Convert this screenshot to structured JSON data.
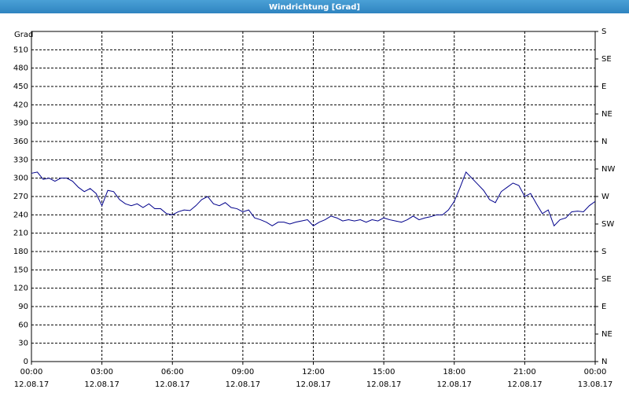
{
  "chart_data": {
    "type": "line",
    "title": "Windrichtung [Grad]",
    "y_label": "Grad",
    "x": [
      0,
      0.25,
      0.5,
      0.75,
      1,
      1.25,
      1.5,
      1.75,
      2,
      2.25,
      2.5,
      2.75,
      3,
      3.25,
      3.5,
      3.75,
      4,
      4.25,
      4.5,
      4.75,
      5,
      5.25,
      5.5,
      5.75,
      6,
      6.25,
      6.5,
      6.75,
      7,
      7.25,
      7.5,
      7.75,
      8,
      8.25,
      8.5,
      8.75,
      9,
      9.25,
      9.5,
      9.75,
      10,
      10.25,
      10.5,
      10.75,
      11,
      11.25,
      11.5,
      11.75,
      12,
      12.25,
      12.5,
      12.75,
      13,
      13.25,
      13.5,
      13.75,
      14,
      14.25,
      14.5,
      14.75,
      15,
      15.25,
      15.5,
      15.75,
      16,
      16.25,
      16.5,
      16.75,
      17,
      17.25,
      17.5,
      17.75,
      18,
      18.25,
      18.5,
      18.75,
      19,
      19.25,
      19.5,
      19.75,
      20,
      20.25,
      20.5,
      20.75,
      21,
      21.25,
      21.5,
      21.75,
      22,
      22.25,
      22.5,
      22.75,
      23,
      23.25,
      23.5,
      23.75,
      24
    ],
    "series": [
      {
        "color": "#00008b",
        "values": [
          308,
          310,
          298,
          300,
          295,
          300,
          300,
          295,
          285,
          278,
          283,
          275,
          255,
          280,
          278,
          265,
          258,
          255,
          258,
          252,
          258,
          250,
          250,
          242,
          240,
          245,
          248,
          247,
          255,
          265,
          270,
          258,
          255,
          260,
          252,
          250,
          245,
          248,
          235,
          232,
          228,
          222,
          228,
          228,
          225,
          228,
          230,
          232,
          222,
          228,
          232,
          238,
          235,
          230,
          232,
          230,
          232,
          228,
          232,
          230,
          235,
          232,
          230,
          228,
          232,
          238,
          232,
          235,
          237,
          240,
          240,
          248,
          262,
          285,
          310,
          300,
          290,
          280,
          265,
          260,
          278,
          285,
          292,
          288,
          270,
          275,
          258,
          242,
          248,
          222,
          232,
          235,
          245,
          246,
          245,
          255,
          262
        ]
      }
    ],
    "xlim": [
      0,
      24
    ],
    "xticks": [
      {
        "value": 0,
        "label": "00:00",
        "date": "12.08.17"
      },
      {
        "value": 3,
        "label": "03:00",
        "date": "12.08.17"
      },
      {
        "value": 6,
        "label": "06:00",
        "date": "12.08.17"
      },
      {
        "value": 9,
        "label": "09:00",
        "date": "12.08.17"
      },
      {
        "value": 12,
        "label": "12:00",
        "date": "12.08.17"
      },
      {
        "value": 15,
        "label": "15:00",
        "date": "12.08.17"
      },
      {
        "value": 18,
        "label": "18:00",
        "date": "12.08.17"
      },
      {
        "value": 21,
        "label": "21:00",
        "date": "12.08.17"
      },
      {
        "value": 24,
        "label": "00:00",
        "date": "13.08.17"
      }
    ],
    "ylim": [
      0,
      540
    ],
    "yticks": [
      0,
      30,
      60,
      90,
      120,
      150,
      180,
      210,
      240,
      270,
      300,
      330,
      360,
      390,
      420,
      450,
      480,
      510
    ],
    "y2lim": [
      0,
      540
    ],
    "y2ticks": [
      {
        "value": 0,
        "label": "N"
      },
      {
        "value": 45,
        "label": "NE"
      },
      {
        "value": 90,
        "label": "E"
      },
      {
        "value": 135,
        "label": "SE"
      },
      {
        "value": 180,
        "label": "S"
      },
      {
        "value": 225,
        "label": "SW"
      },
      {
        "value": 270,
        "label": "W"
      },
      {
        "value": 315,
        "label": "NW"
      },
      {
        "value": 360,
        "label": "N"
      },
      {
        "value": 405,
        "label": "NE"
      },
      {
        "value": 450,
        "label": "E"
      },
      {
        "value": 495,
        "label": "SE"
      },
      {
        "value": 540,
        "label": "S"
      }
    ],
    "grid": true
  }
}
